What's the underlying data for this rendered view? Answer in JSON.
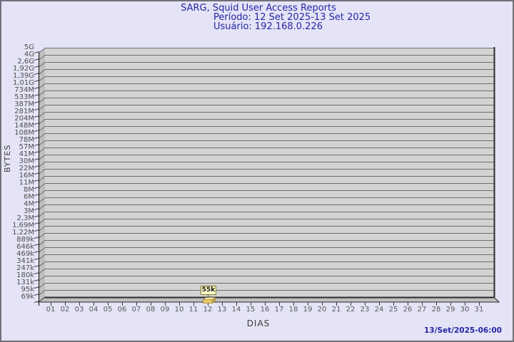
{
  "header": {
    "title": "SARG, Squid User Access Reports",
    "period": "Período: 12 Set 2025-13 Set 2025",
    "user": "Usuário: 192.168.0.226"
  },
  "footer": {
    "timestamp": "13/Set/2025-06:00"
  },
  "chart_data": {
    "type": "bar",
    "title": "SARG, Squid User Access Reports",
    "subtitle_period": "Período: 12 Set 2025-13 Set 2025",
    "subtitle_user": "Usuário: 192.168.0.226",
    "xlabel": "DIAS",
    "ylabel": "BYTES",
    "x_ticks": [
      "01",
      "02",
      "03",
      "04",
      "05",
      "06",
      "07",
      "08",
      "09",
      "10",
      "11",
      "12",
      "13",
      "14",
      "15",
      "16",
      "17",
      "18",
      "19",
      "20",
      "21",
      "22",
      "23",
      "24",
      "25",
      "26",
      "27",
      "28",
      "29",
      "30",
      "31"
    ],
    "y_ticks": [
      "5G",
      "4G",
      "2,6G",
      "1,92G",
      "1,39G",
      "1,01G",
      "734M",
      "533M",
      "387M",
      "281M",
      "204M",
      "148M",
      "108M",
      "78M",
      "57M",
      "41M",
      "30M",
      "22M",
      "16M",
      "11M",
      "8M",
      "6M",
      "4M",
      "3M",
      "2,3M",
      "1,69M",
      "1,22M",
      "889k",
      "646k",
      "469k",
      "341k",
      "247k",
      "180k",
      "131k",
      "95k",
      "69k"
    ],
    "y_scale": "logarithmic-like, top 5G down to 69k",
    "grid": true,
    "legend_position": "none",
    "points": [
      {
        "x": "12",
        "label": "55k",
        "approx_bytes": 56320
      }
    ]
  },
  "colors": {
    "background": "#e4e4f6",
    "frame": "#70707a",
    "plot_back": "#d3d3d3",
    "plot_side": "#bfbfbf",
    "plot_floor": "#bfbfbf",
    "grid": "#6f6f6f",
    "edge_dark": "#2a2a2a",
    "axis": "#111111",
    "header_text": "#2525a5",
    "bar_front": "#eec764",
    "bar_top": "#f8ecb2",
    "bar_side": "#d3a845",
    "annotation_bg": "#ffffca",
    "annotation_border": "#80802a"
  }
}
